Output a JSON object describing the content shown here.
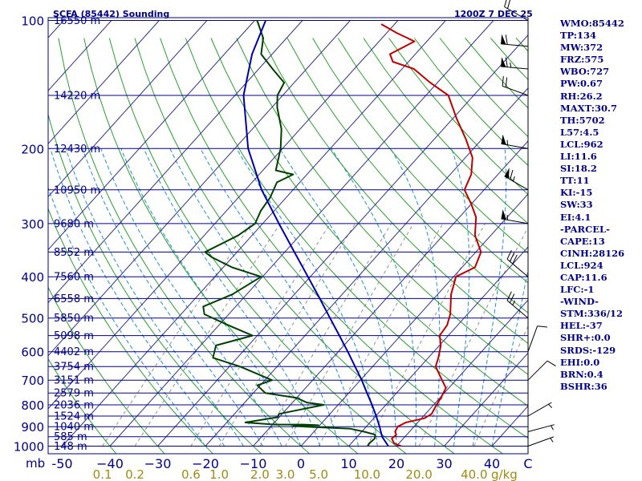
{
  "header": {
    "title": "SCFA (85442) Sounding",
    "time": "1200Z  7 DEC 25"
  },
  "colors": {
    "temperature": "#c00000",
    "dewpoint": "#004000",
    "parcel": "#0000b0",
    "isobar": "#00008b",
    "isotherm": "#303090",
    "dry_adiabat": "#2aa02a",
    "moist_adiabat": "#1f8fd0",
    "mixing_ratio": "#909090",
    "label": "#00008b",
    "mixing_label": "#a08a10"
  },
  "chart_data": {
    "type": "line",
    "chart_kind": "skew-T log-P sounding",
    "y_scale": "log",
    "ylim_hpa": [
      1000,
      100
    ],
    "xlim_c": [
      -50,
      50
    ],
    "x_ticks": [
      "-50",
      "−40",
      "−30",
      "−20",
      "−10",
      "0",
      "10",
      "20",
      "30",
      "40",
      "C"
    ],
    "x_tick_values": [
      -50,
      -40,
      -30,
      -20,
      -10,
      0,
      10,
      20,
      30,
      40,
      50
    ],
    "y_axis_unit": "mb",
    "pressure_ticks": [
      "100",
      "200",
      "300",
      "400",
      "500",
      "600",
      "700",
      "800",
      "900",
      "1000"
    ],
    "pressure_tick_values": [
      100,
      200,
      300,
      400,
      500,
      600,
      700,
      800,
      900,
      1000
    ],
    "height_levels": [
      {
        "p": 100,
        "label": "16550 m"
      },
      {
        "p": 150,
        "label": "14220 m"
      },
      {
        "p": 200,
        "label": "12430 m"
      },
      {
        "p": 250,
        "label": "10950 m"
      },
      {
        "p": 300,
        "label": "9680 m"
      },
      {
        "p": 350,
        "label": "8552 m"
      },
      {
        "p": 400,
        "label": "7560 m"
      },
      {
        "p": 450,
        "label": "6558 m"
      },
      {
        "p": 500,
        "label": "5850 m"
      },
      {
        "p": 550,
        "label": "5098 m"
      },
      {
        "p": 600,
        "label": "4402 m"
      },
      {
        "p": 650,
        "label": "3754 m"
      },
      {
        "p": 700,
        "label": "3151 m"
      },
      {
        "p": 750,
        "label": "2579 m"
      },
      {
        "p": 800,
        "label": "2036 m"
      },
      {
        "p": 850,
        "label": "1524 m"
      },
      {
        "p": 900,
        "label": "1040 m"
      },
      {
        "p": 950,
        "label": "585 m"
      },
      {
        "p": 1000,
        "label": "148 m"
      }
    ],
    "mixing_ratio_unit": "g/kg",
    "mixing_ratio_labels": [
      "0.1",
      "0.2",
      "0.6",
      "1.0",
      "2.0",
      "3.0",
      "5.0",
      "10.0",
      "20.0",
      "40.0"
    ],
    "mixing_ratio_values": [
      0.1,
      0.2,
      0.6,
      1.0,
      2.0,
      3.0,
      5.0,
      10.0,
      20.0,
      40.0
    ],
    "series": [
      {
        "key": "temperature",
        "points": [
          [
            1000,
            21
          ],
          [
            985,
            19
          ],
          [
            960,
            17.6
          ],
          [
            940,
            17.8
          ],
          [
            925,
            17
          ],
          [
            900,
            16.6
          ],
          [
            880,
            17.5
          ],
          [
            860,
            20.6
          ],
          [
            840,
            21.3
          ],
          [
            800,
            20.6
          ],
          [
            770,
            20.2
          ],
          [
            730,
            19.4
          ],
          [
            700,
            17.1
          ],
          [
            650,
            13.2
          ],
          [
            620,
            12.1
          ],
          [
            580,
            10.3
          ],
          [
            550,
            8.2
          ],
          [
            520,
            7.8
          ],
          [
            490,
            6.4
          ],
          [
            440,
            2.8
          ],
          [
            400,
            0.5
          ],
          [
            380,
            2.7
          ],
          [
            350,
            1.1
          ],
          [
            320,
            -3.3
          ],
          [
            290,
            -6.5
          ],
          [
            270,
            -10
          ],
          [
            250,
            -14.1
          ],
          [
            230,
            -15.6
          ],
          [
            210,
            -18.5
          ],
          [
            190,
            -23.4
          ],
          [
            170,
            -29.2
          ],
          [
            150,
            -35.3
          ],
          [
            140,
            -41.5
          ],
          [
            130,
            -47.5
          ],
          [
            125,
            -53.3
          ],
          [
            120,
            -55.3
          ],
          [
            112,
            -52.6
          ],
          [
            107,
            -57.9
          ],
          [
            102,
            -62.8
          ]
        ]
      },
      {
        "key": "dewpoint",
        "points": [
          [
            1000,
            14
          ],
          [
            985,
            13.8
          ],
          [
            960,
            14
          ],
          [
            940,
            13.4
          ],
          [
            925,
            10.5
          ],
          [
            910,
            7.1
          ],
          [
            900,
            -2.8
          ],
          [
            895,
            -5.5
          ],
          [
            893,
            -0.3
          ],
          [
            890,
            -3.7
          ],
          [
            890,
            -9.5
          ],
          [
            880,
            -16.1
          ],
          [
            855,
            -10.3
          ],
          [
            840,
            -10.7
          ],
          [
            800,
            -3
          ],
          [
            790,
            -7
          ],
          [
            770,
            -10.1
          ],
          [
            750,
            -17.5
          ],
          [
            720,
            -20.6
          ],
          [
            700,
            -18.5
          ],
          [
            650,
            -27.8
          ],
          [
            620,
            -35.1
          ],
          [
            580,
            -36.8
          ],
          [
            550,
            -31
          ],
          [
            520,
            -38
          ],
          [
            490,
            -45.1
          ],
          [
            470,
            -46.8
          ],
          [
            440,
            -43
          ],
          [
            400,
            -40.3
          ],
          [
            380,
            -48.2
          ],
          [
            360,
            -54.3
          ],
          [
            350,
            -56.7
          ],
          [
            320,
            -52.9
          ],
          [
            300,
            -51.6
          ],
          [
            280,
            -52.8
          ],
          [
            260,
            -53.4
          ],
          [
            240,
            -54.8
          ],
          [
            230,
            -52.9
          ],
          [
            225,
            -57.3
          ],
          [
            200,
            -60.4
          ],
          [
            180,
            -63.9
          ],
          [
            160,
            -68.9
          ],
          [
            150,
            -71.1
          ],
          [
            140,
            -72.1
          ],
          [
            130,
            -77.1
          ],
          [
            120,
            -82.3
          ],
          [
            110,
            -84.9
          ],
          [
            100,
            -89.5
          ]
        ]
      },
      {
        "key": "parcel",
        "points": [
          [
            1000,
            18.3
          ],
          [
            950,
            15.2
          ],
          [
            900,
            12.8
          ],
          [
            850,
            10.1
          ],
          [
            800,
            7.1
          ],
          [
            750,
            3.8
          ],
          [
            700,
            0.3
          ],
          [
            650,
            -3.7
          ],
          [
            600,
            -8
          ],
          [
            550,
            -12.8
          ],
          [
            500,
            -18.1
          ],
          [
            450,
            -23.9
          ],
          [
            400,
            -30.5
          ],
          [
            350,
            -38
          ],
          [
            300,
            -46.6
          ],
          [
            250,
            -56.6
          ],
          [
            200,
            -67.2
          ],
          [
            150,
            -78.2
          ],
          [
            120,
            -84.2
          ],
          [
            100,
            -87.7
          ]
        ]
      }
    ],
    "winds": [
      {
        "p": 1000,
        "dir": 70,
        "spd": 5
      },
      {
        "p": 925,
        "dir": 75,
        "spd": 5
      },
      {
        "p": 850,
        "dir": 60,
        "spd": 5
      },
      {
        "p": 700,
        "dir": 45,
        "spd": 10
      },
      {
        "p": 600,
        "dir": 20,
        "spd": 10
      },
      {
        "p": 500,
        "dir": 310,
        "spd": 25
      },
      {
        "p": 400,
        "dir": 310,
        "spd": 30
      },
      {
        "p": 300,
        "dir": 280,
        "spd": 55
      },
      {
        "p": 250,
        "dir": 300,
        "spd": 65
      },
      {
        "p": 200,
        "dir": 280,
        "spd": 55
      },
      {
        "p": 150,
        "dir": 290,
        "spd": 20
      },
      {
        "p": 130,
        "dir": 275,
        "spd": 65
      },
      {
        "p": 115,
        "dir": 275,
        "spd": 60
      },
      {
        "p": 100,
        "dir": 300,
        "spd": 20
      }
    ]
  },
  "indices": [
    "WMO:85442",
    "TP:134",
    "MW:372",
    "FRZ:575",
    "WBO:727",
    "PW:0.67",
    "RH:26.2",
    "MAXT:30.7",
    "TH:5702",
    "L57:4.5",
    "LCL:962",
    "LI:11.6",
    "SI:18.2",
    "TT:11",
    "KI:-15",
    "SW:33",
    "EI:4.1",
    "-PARCEL-",
    "CAPE:13",
    "CINH:28126",
    "LCL:924",
    "CAP:11.6",
    "LFC:-1",
    "-WIND-",
    "STM:336/12",
    "HEL:-37",
    "SHR+:0.0",
    "SRDS:-129",
    "EHI:0.0",
    "BRN:0.4",
    "BSHR:36"
  ]
}
